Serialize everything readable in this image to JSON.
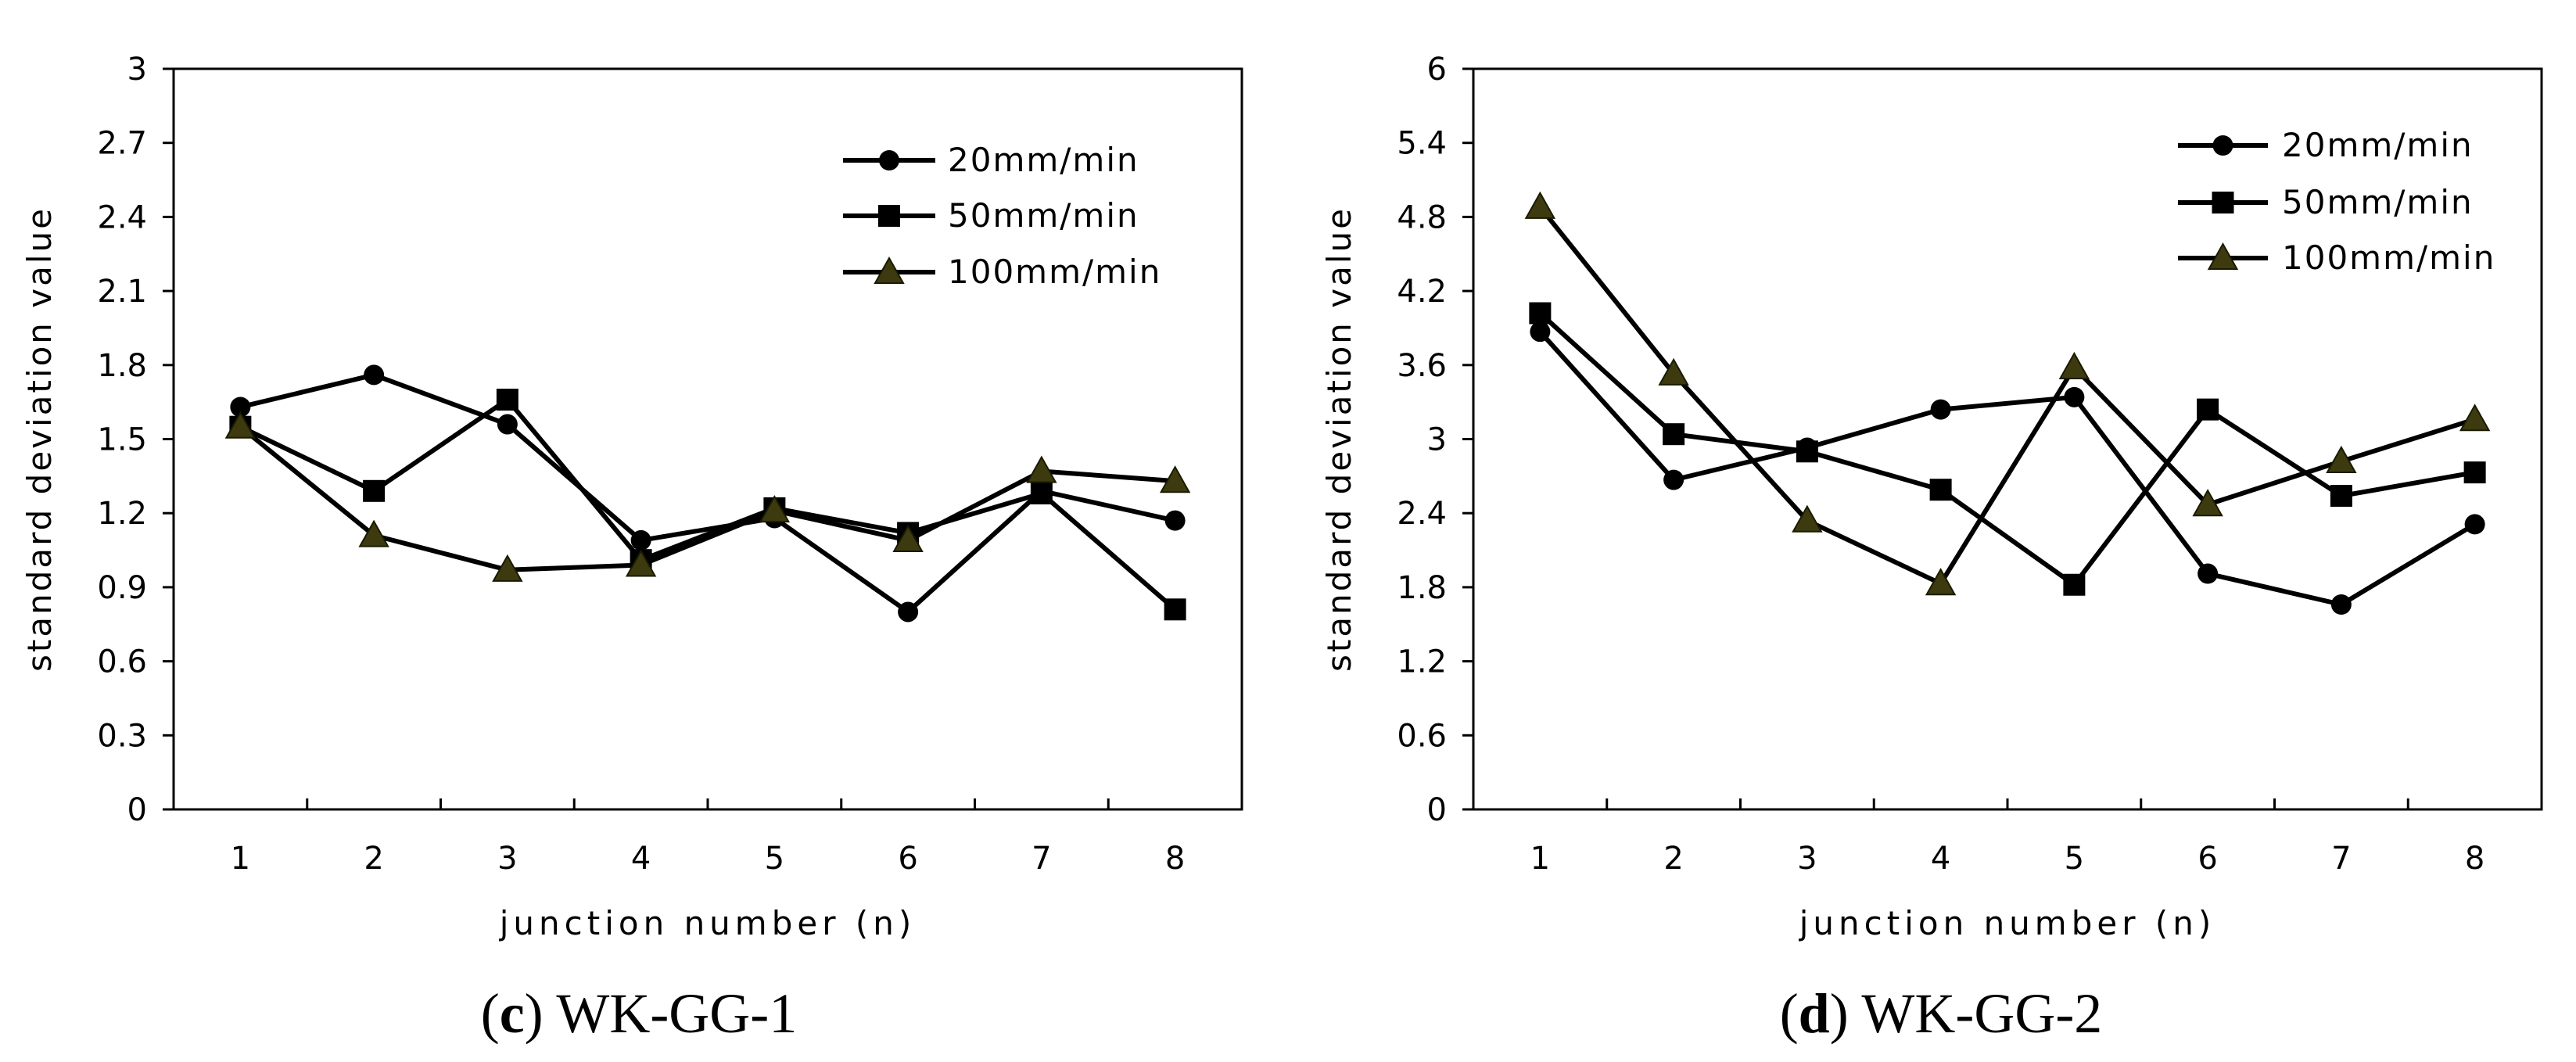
{
  "chart_data": [
    {
      "type": "line",
      "caption_letter": "c",
      "caption_name": "WK-GG-1",
      "xlabel": "junction number (n)",
      "ylabel": "standard deviation value",
      "categories": [
        "1",
        "2",
        "3",
        "4",
        "5",
        "6",
        "7",
        "8"
      ],
      "ylim": [
        0,
        3
      ],
      "yticks": [
        "0",
        "0.3",
        "0.6",
        "0.9",
        "1.2",
        "1.5",
        "1.8",
        "2.1",
        "2.4",
        "2.7",
        "3"
      ],
      "legend_position": "top-right",
      "series": [
        {
          "name": "20mm/min",
          "marker": "circle",
          "values": [
            1.63,
            1.76,
            1.56,
            1.09,
            1.18,
            0.8,
            1.29,
            1.17
          ]
        },
        {
          "name": "50mm/min",
          "marker": "square",
          "values": [
            1.55,
            1.29,
            1.66,
            1.01,
            1.22,
            1.12,
            1.28,
            0.81
          ]
        },
        {
          "name": "100mm/min",
          "marker": "triangle",
          "values": [
            1.55,
            1.11,
            0.97,
            0.99,
            1.21,
            1.09,
            1.37,
            1.33
          ]
        }
      ]
    },
    {
      "type": "line",
      "caption_letter": "d",
      "caption_name": "WK-GG-2",
      "xlabel": "junction number (n)",
      "ylabel": "standard deviation value",
      "categories": [
        "1",
        "2",
        "3",
        "4",
        "5",
        "6",
        "7",
        "8"
      ],
      "ylim": [
        0,
        6
      ],
      "yticks": [
        "0",
        "0.6",
        "1.2",
        "1.8",
        "2.4",
        "3",
        "3.6",
        "4.2",
        "4.8",
        "5.4",
        "6"
      ],
      "legend_position": "top-right",
      "series": [
        {
          "name": "20mm/min",
          "marker": "circle",
          "values": [
            3.87,
            2.67,
            2.93,
            3.24,
            3.34,
            1.91,
            1.66,
            2.31
          ]
        },
        {
          "name": "50mm/min",
          "marker": "square",
          "values": [
            4.02,
            3.04,
            2.9,
            2.59,
            1.82,
            3.24,
            2.54,
            2.73
          ]
        },
        {
          "name": "100mm/min",
          "marker": "triangle",
          "values": [
            4.88,
            3.53,
            2.34,
            1.83,
            3.58,
            2.47,
            2.82,
            3.16
          ]
        }
      ]
    }
  ],
  "colors": {
    "line": "#000000",
    "circle_fill": "#000000",
    "square_fill": "#000000",
    "triangle_fill": "#3d3a10"
  }
}
